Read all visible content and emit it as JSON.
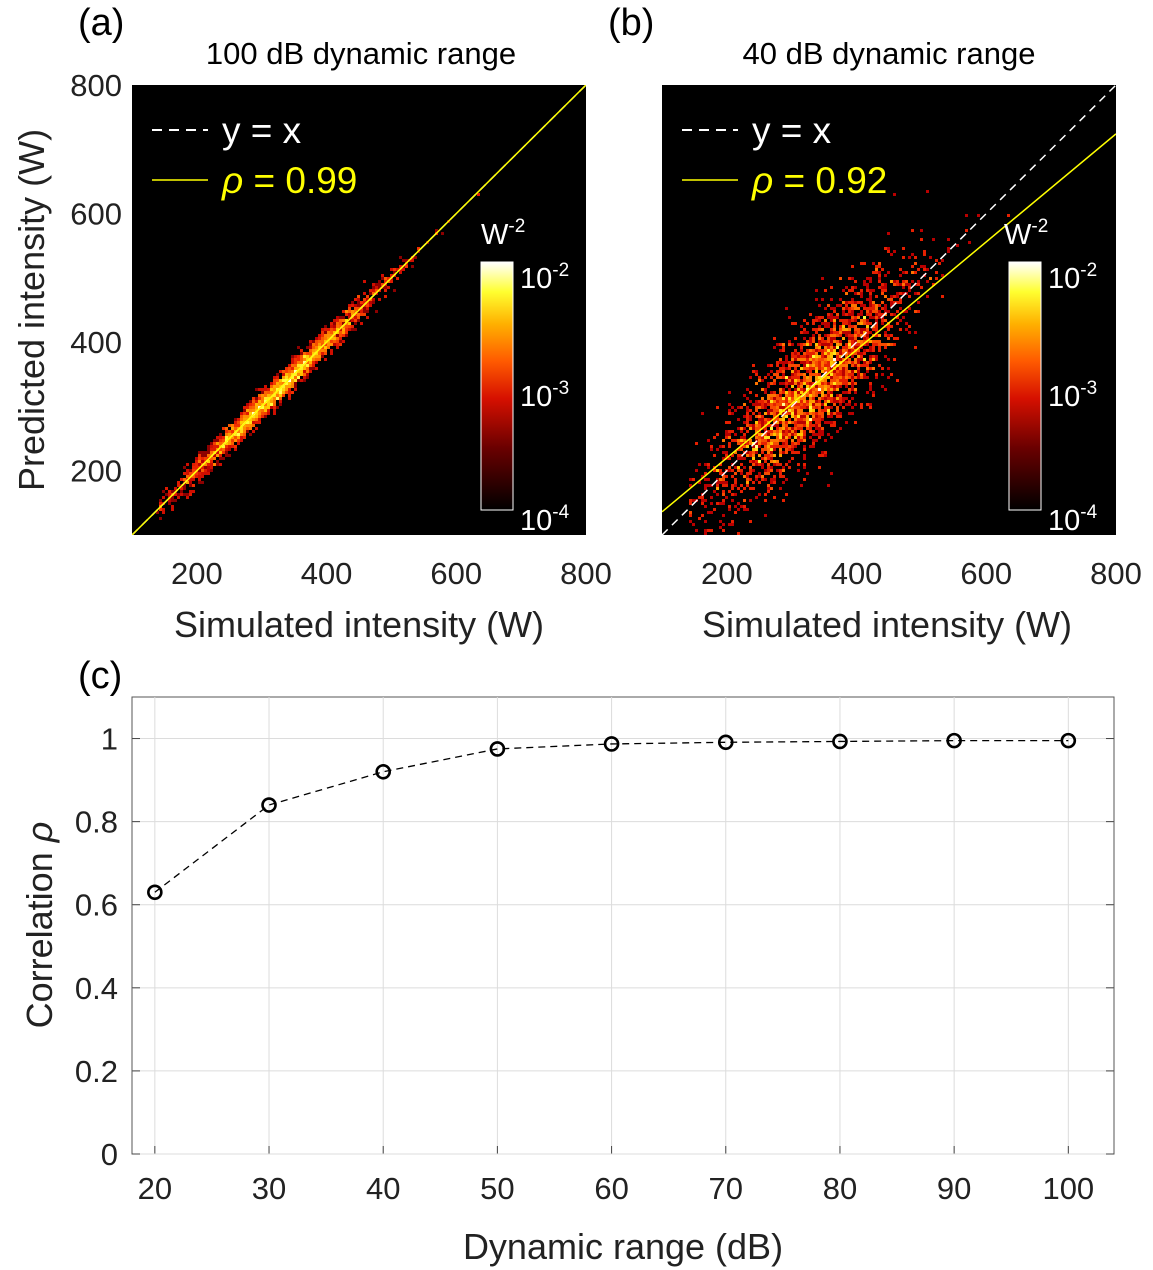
{
  "chart_data": [
    {
      "panel": "(a)",
      "type": "heatmap",
      "title": "100 dB dynamic range",
      "xlabel": "Simulated intensity (W)",
      "ylabel": "Predicted intensity (W)",
      "xlim": [
        100,
        800
      ],
      "ylim": [
        100,
        800
      ],
      "xticks": [
        200,
        400,
        600,
        800
      ],
      "yticks": [
        200,
        400,
        600,
        800
      ],
      "background": "#000000",
      "legend": [
        {
          "label": "y = x",
          "style": "dashed",
          "color": "#ffffff"
        },
        {
          "label_symbol": "ρ",
          "label_rest": " = 0.99",
          "style": "solid",
          "color": "#ffff00"
        }
      ],
      "fit_line": {
        "slope": 1.0,
        "intercept": 0
      },
      "density": {
        "scatter": 10
      },
      "colorbar": {
        "unit": "W",
        "unit_exp": "-2",
        "base": "10",
        "ticks_exp": [
          "-2",
          "-3",
          "-4"
        ],
        "range": [
          0.0001,
          0.01
        ],
        "scale": "log"
      }
    },
    {
      "panel": "(b)",
      "type": "heatmap",
      "title": "40 dB dynamic range",
      "xlabel": "Simulated intensity (W)",
      "xlim": [
        100,
        800
      ],
      "ylim": [
        100,
        800
      ],
      "xticks": [
        200,
        400,
        600,
        800
      ],
      "background": "#000000",
      "legend": [
        {
          "label": "y = x",
          "style": "dashed",
          "color": "#ffffff"
        },
        {
          "label_symbol": "ρ",
          "label_rest": " = 0.92",
          "style": "solid",
          "color": "#ffff00"
        }
      ],
      "fit_line": {
        "slope": 0.84,
        "intercept": 52
      },
      "density": {
        "scatter": 48
      },
      "colorbar": {
        "unit": "W",
        "unit_exp": "-2",
        "base": "10",
        "ticks_exp": [
          "-2",
          "-3",
          "-4"
        ],
        "range": [
          0.0001,
          0.01
        ],
        "scale": "log"
      }
    },
    {
      "panel": "(c)",
      "type": "line",
      "xlabel": "Dynamic range (dB)",
      "ylabel_text": "Correlation ",
      "ylabel_symbol": "ρ",
      "xlim": [
        18,
        104
      ],
      "ylim": [
        0,
        1.1
      ],
      "xticks": [
        20,
        30,
        40,
        50,
        60,
        70,
        80,
        90,
        100
      ],
      "yticks": [
        0,
        0.2,
        0.4,
        0.6,
        0.8,
        1
      ],
      "ytick_labels": [
        "0",
        "0.2",
        "0.4",
        "0.6",
        "0.8",
        "1"
      ],
      "grid": true,
      "series": [
        {
          "style": "dashed-line-with-circle-markers",
          "color": "#000000",
          "x": [
            20,
            30,
            40,
            50,
            60,
            70,
            80,
            90,
            100
          ],
          "y": [
            0.63,
            0.84,
            0.92,
            0.975,
            0.987,
            0.991,
            0.993,
            0.995,
            0.995
          ]
        }
      ]
    }
  ]
}
